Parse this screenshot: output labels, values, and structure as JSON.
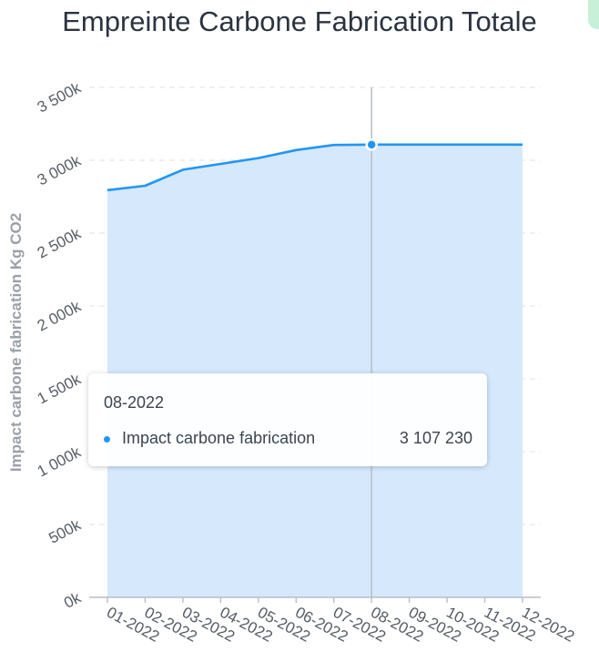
{
  "chart_data": {
    "type": "area",
    "title": "Empreinte Carbone Fabrication Totale",
    "ylabel": "Impact carbone fabrication Kg CO2",
    "xlabel": "",
    "categories": [
      "01-2022",
      "02-2022",
      "03-2022",
      "04-2022",
      "05-2022",
      "06-2022",
      "07-2022",
      "08-2022",
      "09-2022",
      "10-2022",
      "11-2022",
      "12-2022"
    ],
    "series": [
      {
        "name": "Impact carbone fabrication",
        "values": [
          2795000,
          2825000,
          2935000,
          2975000,
          3015000,
          3070000,
          3105000,
          3107230,
          3107230,
          3107230,
          3107230,
          3107230
        ]
      }
    ],
    "ylim": [
      0,
      3500000
    ],
    "yticks": [
      "0k",
      "500k",
      "1 000k",
      "1 500k",
      "2 000k",
      "2 500k",
      "3 000k",
      "3 500k"
    ],
    "grid": true,
    "colors": {
      "line": "#2196f3",
      "fill": "#d5e8fc",
      "hover_line": "#b8bec6"
    },
    "hover_index": 7
  },
  "tooltip": {
    "title": "08-2022",
    "series_name": "Impact carbone fabrication",
    "value": "3 107 230"
  }
}
